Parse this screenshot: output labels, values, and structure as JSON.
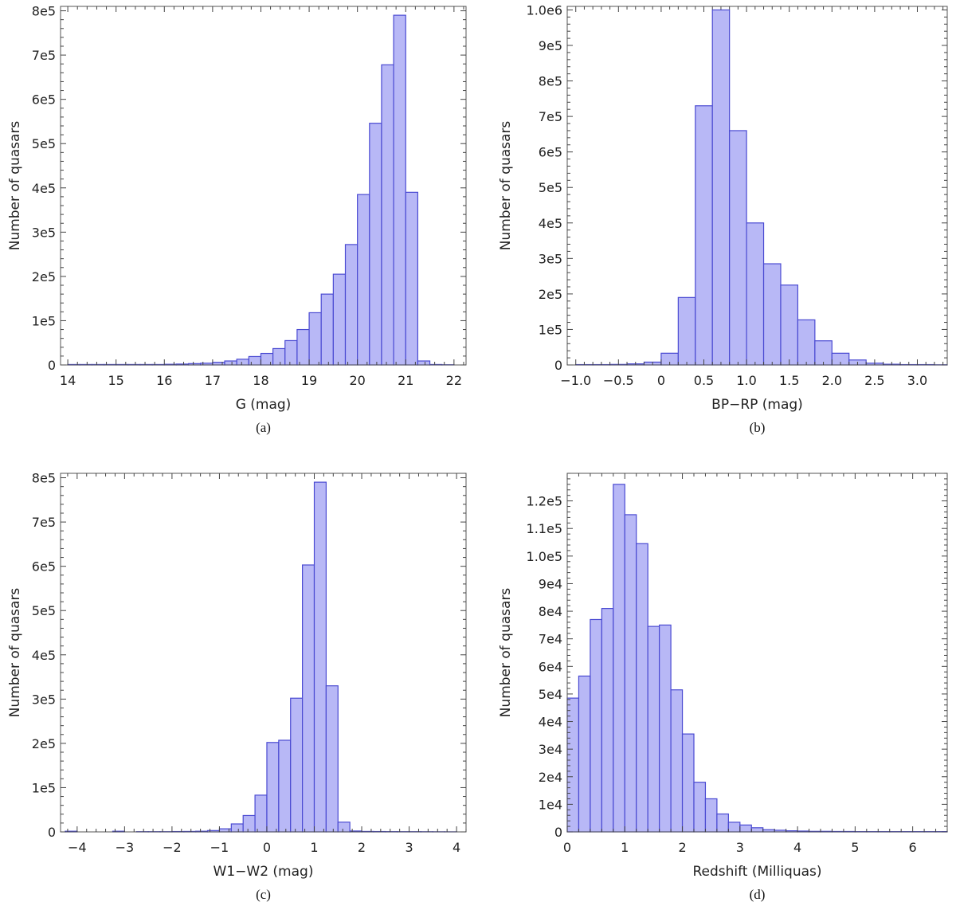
{
  "chart_data": [
    {
      "id": "a",
      "type": "bar",
      "caption": "(a)",
      "xlabel": "G (mag)",
      "ylabel": "Number of quasars",
      "xlim": [
        13.85,
        22.25
      ],
      "ylim": [
        0,
        810000
      ],
      "xticks": [
        14,
        15,
        16,
        17,
        18,
        19,
        20,
        21,
        22
      ],
      "xtick_labels": [
        "14",
        "15",
        "16",
        "17",
        "18",
        "19",
        "20",
        "21",
        "22"
      ],
      "yticks": [
        0,
        100000,
        200000,
        300000,
        400000,
        500000,
        600000,
        700000,
        800000
      ],
      "ytick_labels": [
        "0",
        "1e5",
        "2e5",
        "3e5",
        "4e5",
        "5e5",
        "6e5",
        "7e5",
        "8e5"
      ],
      "bin_edges": [
        14.0,
        14.25,
        14.5,
        14.75,
        15.0,
        15.25,
        15.5,
        15.75,
        16.0,
        16.25,
        16.5,
        16.75,
        17.0,
        17.25,
        17.5,
        17.75,
        18.0,
        18.25,
        18.5,
        18.75,
        19.0,
        19.25,
        19.5,
        19.75,
        20.0,
        20.25,
        20.5,
        20.75,
        21.0,
        21.25,
        21.5,
        21.75,
        22.0
      ],
      "values": [
        1000,
        1000,
        1000,
        1000,
        1000,
        1000,
        1000,
        1000,
        1500,
        2000,
        3000,
        4000,
        6000,
        9000,
        13000,
        19000,
        26000,
        37000,
        55000,
        80000,
        118000,
        160000,
        205000,
        272000,
        385000,
        546000,
        678000,
        790000,
        390000,
        9000,
        1000,
        500
      ]
    },
    {
      "id": "b",
      "type": "bar",
      "caption": "(b)",
      "xlabel": "BP−RP (mag)",
      "ylabel": "Number of quasars",
      "xlim": [
        -1.1,
        3.35
      ],
      "ylim": [
        0,
        1010000
      ],
      "xticks": [
        -1.0,
        -0.5,
        0,
        0.5,
        1.0,
        1.5,
        2.0,
        2.5,
        3.0
      ],
      "xtick_labels": [
        "−1.0",
        "−0.5",
        "0",
        "0.5",
        "1.0",
        "1.5",
        "2.0",
        "2.5",
        "3.0"
      ],
      "yticks": [
        0,
        100000,
        200000,
        300000,
        400000,
        500000,
        600000,
        700000,
        800000,
        900000,
        1000000
      ],
      "ytick_labels": [
        "0",
        "1e5",
        "2e5",
        "3e5",
        "4e5",
        "5e5",
        "6e5",
        "7e5",
        "8e5",
        "9e5",
        "1.0e6"
      ],
      "bin_edges": [
        -1.0,
        -0.8,
        -0.6,
        -0.4,
        -0.2,
        0.0,
        0.2,
        0.4,
        0.6,
        0.8,
        1.0,
        1.2,
        1.4,
        1.6,
        1.8,
        2.0,
        2.2,
        2.4,
        2.6,
        2.8,
        3.0,
        3.2,
        3.35
      ],
      "values": [
        1000,
        1000,
        1500,
        3000,
        8000,
        33000,
        190000,
        730000,
        1000000,
        660000,
        400000,
        285000,
        225000,
        127000,
        68000,
        33000,
        14000,
        5000,
        2000,
        1000,
        1000,
        500
      ]
    },
    {
      "id": "c",
      "type": "bar",
      "caption": "(c)",
      "xlabel": "W1−W2 (mag)",
      "ylabel": "Number of quasars",
      "xlim": [
        -4.35,
        4.2
      ],
      "ylim": [
        0,
        810000
      ],
      "xticks": [
        -4,
        -3,
        -2,
        -1,
        0,
        1,
        2,
        3,
        4
      ],
      "xtick_labels": [
        "−4",
        "−3",
        "−2",
        "−1",
        "0",
        "1",
        "2",
        "3",
        "4"
      ],
      "yticks": [
        0,
        100000,
        200000,
        300000,
        400000,
        500000,
        600000,
        700000,
        800000
      ],
      "ytick_labels": [
        "0",
        "1e5",
        "2e5",
        "3e5",
        "4e5",
        "5e5",
        "6e5",
        "7e5",
        "8e5"
      ],
      "bin_edges": [
        -4.25,
        -4.0,
        -3.75,
        -3.5,
        -3.25,
        -3.0,
        -2.75,
        -2.5,
        -2.25,
        -2.0,
        -1.75,
        -1.5,
        -1.25,
        -1.0,
        -0.75,
        -0.5,
        -0.25,
        0.0,
        0.25,
        0.5,
        0.75,
        1.0,
        1.25,
        1.5,
        1.75,
        2.0,
        2.25,
        2.5,
        2.75,
        3.0,
        3.25,
        3.5,
        3.75,
        4.0
      ],
      "values": [
        1500,
        0,
        0,
        0,
        1500,
        0,
        500,
        500,
        500,
        800,
        1000,
        1500,
        3000,
        7000,
        18000,
        37000,
        83000,
        202000,
        207000,
        302000,
        603000,
        790000,
        330000,
        22000,
        2000,
        1000,
        800,
        600,
        500,
        500,
        400,
        300,
        200
      ]
    },
    {
      "id": "d",
      "type": "bar",
      "caption": "(d)",
      "xlabel": "Redshift (Milliquas)",
      "ylabel": "Number of quasars",
      "xlim": [
        0,
        6.6
      ],
      "ylim": [
        0,
        130000
      ],
      "xticks": [
        0,
        1,
        2,
        3,
        4,
        5,
        6
      ],
      "xtick_labels": [
        "0",
        "1",
        "2",
        "3",
        "4",
        "5",
        "6"
      ],
      "yticks": [
        0,
        10000,
        20000,
        30000,
        40000,
        50000,
        60000,
        70000,
        80000,
        90000,
        100000,
        110000,
        120000
      ],
      "ytick_labels": [
        "0",
        "1e4",
        "2e4",
        "3e4",
        "4e4",
        "5e4",
        "6e4",
        "7e4",
        "8e4",
        "9e4",
        "1.0e5",
        "1.1e5",
        "1.2e5"
      ],
      "bin_edges": [
        0.0,
        0.2,
        0.4,
        0.6,
        0.8,
        1.0,
        1.2,
        1.4,
        1.6,
        1.8,
        2.0,
        2.2,
        2.4,
        2.6,
        2.8,
        3.0,
        3.2,
        3.4,
        3.6,
        3.8,
        4.0,
        4.2,
        4.4,
        4.6,
        4.8,
        5.0,
        5.2,
        5.4,
        5.6,
        5.8,
        6.0,
        6.2,
        6.4,
        6.6
      ],
      "values": [
        48500,
        56500,
        77000,
        81000,
        126000,
        115000,
        104500,
        74500,
        75000,
        51500,
        35500,
        18000,
        12000,
        6500,
        3500,
        2500,
        1500,
        800,
        600,
        400,
        300,
        200,
        200,
        150,
        150,
        100,
        100,
        100,
        100,
        100,
        100,
        100,
        100
      ]
    }
  ]
}
